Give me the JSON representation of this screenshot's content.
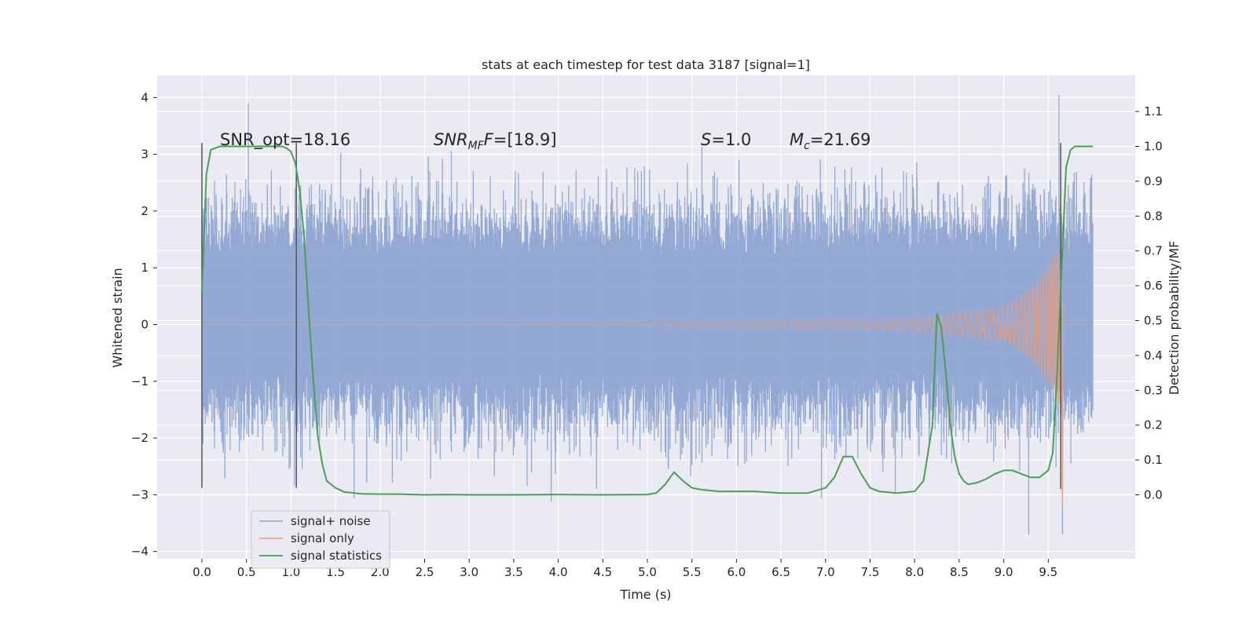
{
  "chart_data": {
    "type": "line",
    "title": "stats at each timestep for test data 3187 [signal=1]",
    "xlabel": "Time (s)",
    "ylabel_left": "Whitened strain",
    "ylabel_right": "Detection probability/MF",
    "xlim": [
      -0.5,
      10.5
    ],
    "ylim_left": [
      -4.1,
      4.4
    ],
    "ylim_right": [
      -0.2,
      1.19
    ],
    "x_ticks": [
      "0.0",
      "0.5",
      "1.0",
      "1.5",
      "2.0",
      "2.5",
      "3.0",
      "3.5",
      "4.0",
      "4.5",
      "5.0",
      "5.5",
      "6.0",
      "6.5",
      "7.0",
      "7.5",
      "8.0",
      "8.5",
      "9.0",
      "9.5"
    ],
    "y_left_ticks": [
      "4",
      "3",
      "2",
      "1",
      "0",
      "−1",
      "−2",
      "−3",
      "−4"
    ],
    "y_right_ticks": [
      "1.1",
      "1.0",
      "0.9",
      "0.8",
      "0.7",
      "0.6",
      "0.5",
      "0.4",
      "0.3",
      "0.2",
      "0.1",
      "0.0"
    ],
    "grid": true,
    "legend_position": "lower-left",
    "annotations": {
      "snr_opt": "SNR_opt=18.16",
      "snr_mf_label": "SNR",
      "snr_mf_sub": "MF",
      "snr_mf_value": "=[18.9]",
      "s_label": "S",
      "s_value": "=1.0",
      "mc_label": "M",
      "mc_sub": "c",
      "mc_value": "=21.69"
    },
    "vertical_lines": [
      {
        "x": 0.0,
        "y_range": [
          -2.88,
          3.2
        ]
      },
      {
        "x": 1.06,
        "y_range": [
          -2.88,
          3.2
        ]
      },
      {
        "x": 9.64,
        "y_range": [
          -2.9,
          3.2
        ]
      }
    ],
    "series": [
      {
        "name": "signal+ noise",
        "color": "#8ea5d2",
        "axis": "left",
        "description_band": {
          "x_start": 0.0,
          "x_end": 10.0,
          "band": [
            -0.85,
            1.2
          ]
        },
        "peaks": [
          {
            "x": 0.52,
            "y": 3.9
          },
          {
            "x": 2.8,
            "y": 3.05
          },
          {
            "x": 9.28,
            "y": -3.7
          },
          {
            "x": 9.62,
            "y": 4.05
          },
          {
            "x": 9.66,
            "y": -3.7
          }
        ]
      },
      {
        "name": "signal only",
        "color": "#e49b7e",
        "axis": "left",
        "chirp": {
          "x_start": 0.0,
          "merger_x": 9.65,
          "amp_at_5": 0.03,
          "amp_at_8": 0.1,
          "amp_at_9": 0.3,
          "amp_max": 1.5
        }
      },
      {
        "name": "signal statistics",
        "color": "#4c9e57",
        "axis": "right",
        "x": [
          0.0,
          0.05,
          0.1,
          0.15,
          0.2,
          0.3,
          0.4,
          0.5,
          0.6,
          0.7,
          0.8,
          0.9,
          0.95,
          1.0,
          1.05,
          1.1,
          1.15,
          1.2,
          1.25,
          1.3,
          1.35,
          1.4,
          1.5,
          1.6,
          1.8,
          2.0,
          2.2,
          2.5,
          2.75,
          3.0,
          3.5,
          4.0,
          4.5,
          5.0,
          5.1,
          5.2,
          5.3,
          5.4,
          5.5,
          5.6,
          5.8,
          6.0,
          6.2,
          6.5,
          6.8,
          7.0,
          7.1,
          7.2,
          7.3,
          7.4,
          7.5,
          7.6,
          7.8,
          8.0,
          8.1,
          8.2,
          8.25,
          8.3,
          8.35,
          8.4,
          8.45,
          8.5,
          8.55,
          8.6,
          8.7,
          8.8,
          8.9,
          9.0,
          9.1,
          9.2,
          9.3,
          9.4,
          9.5,
          9.55,
          9.6,
          9.65,
          9.7,
          9.75,
          9.8,
          9.9,
          10.0
        ],
        "y": [
          0.58,
          0.92,
          0.99,
          0.995,
          1.0,
          1.0,
          1.0,
          1.0,
          1.0,
          1.0,
          1.0,
          1.0,
          0.995,
          0.985,
          0.95,
          0.87,
          0.73,
          0.52,
          0.33,
          0.17,
          0.09,
          0.04,
          0.02,
          0.008,
          0.003,
          0.002,
          0.002,
          0.0,
          0.001,
          0.0,
          0.0,
          0.001,
          0.0,
          0.001,
          0.005,
          0.03,
          0.065,
          0.04,
          0.02,
          0.015,
          0.01,
          0.01,
          0.01,
          0.005,
          0.005,
          0.02,
          0.05,
          0.11,
          0.11,
          0.06,
          0.02,
          0.01,
          0.005,
          0.01,
          0.04,
          0.2,
          0.52,
          0.48,
          0.35,
          0.2,
          0.11,
          0.06,
          0.04,
          0.03,
          0.035,
          0.045,
          0.06,
          0.07,
          0.07,
          0.06,
          0.05,
          0.05,
          0.07,
          0.12,
          0.35,
          0.65,
          0.94,
          0.99,
          1.0,
          1.0,
          1.0
        ]
      }
    ]
  }
}
